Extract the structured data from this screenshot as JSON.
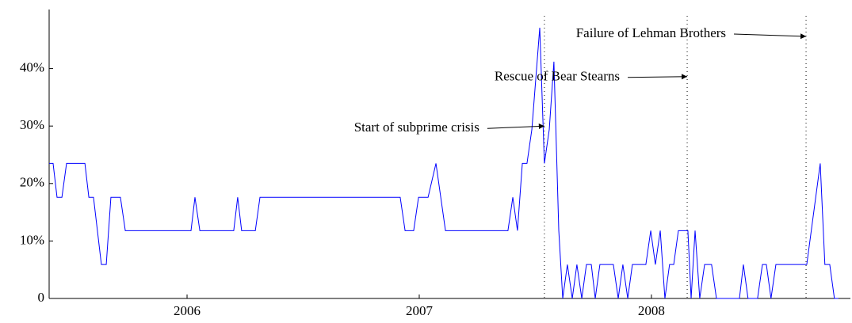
{
  "chart_data": {
    "type": "line",
    "x": [
      2005.406,
      2005.423,
      2005.44,
      2005.461,
      2005.481,
      2005.56,
      2005.577,
      2005.597,
      2005.631,
      2005.652,
      2005.672,
      2005.713,
      2005.734,
      2006.017,
      2006.034,
      2006.055,
      2006.201,
      2006.218,
      2006.235,
      2006.294,
      2006.314,
      2006.918,
      2006.939,
      2006.976,
      2006.997,
      2007.038,
      2007.072,
      2007.113,
      2007.382,
      2007.403,
      2007.423,
      2007.444,
      2007.464,
      2007.485,
      2007.519,
      2007.539,
      2007.56,
      2007.58,
      2007.601,
      2007.618,
      2007.638,
      2007.659,
      2007.679,
      2007.7,
      2007.72,
      2007.741,
      2007.758,
      2007.778,
      2007.836,
      2007.857,
      2007.877,
      2007.898,
      2007.918,
      2007.976,
      2007.997,
      2008.017,
      2008.038,
      2008.058,
      2008.078,
      2008.096,
      2008.116,
      2008.157,
      2008.171,
      2008.188,
      2008.208,
      2008.229,
      2008.259,
      2008.28,
      2008.379,
      2008.396,
      2008.416,
      2008.457,
      2008.478,
      2008.495,
      2008.515,
      2008.536,
      2008.669,
      2008.727,
      2008.747,
      2008.768,
      2008.788,
      2008.805
    ],
    "values": [
      23.5,
      23.5,
      17.6,
      17.6,
      23.5,
      23.5,
      17.6,
      17.6,
      5.9,
      5.9,
      17.6,
      17.6,
      11.8,
      11.8,
      17.6,
      11.8,
      11.8,
      17.6,
      11.8,
      11.8,
      17.6,
      17.6,
      11.8,
      11.8,
      17.6,
      17.6,
      23.5,
      11.8,
      11.8,
      17.6,
      11.8,
      23.5,
      23.5,
      29.4,
      47.1,
      23.5,
      29.4,
      41.2,
      11.8,
      0,
      5.9,
      0,
      5.9,
      0,
      5.9,
      5.9,
      0,
      5.9,
      5.9,
      0,
      5.9,
      0,
      5.9,
      5.9,
      11.8,
      5.9,
      11.8,
      0,
      5.9,
      5.9,
      11.8,
      11.8,
      0,
      11.8,
      0,
      5.9,
      5.9,
      0,
      0,
      5.9,
      0,
      0,
      5.9,
      5.9,
      0,
      5.9,
      5.9,
      23.5,
      5.9,
      5.9,
      0,
      0
    ],
    "color": "#0000ff",
    "xlim": [
      2005.406,
      2008.857
    ],
    "xticks": [
      2006,
      2007,
      2008
    ],
    "ylim": [
      0,
      50
    ],
    "yticks": [
      0,
      {
        "value": 10,
        "label": "10%"
      },
      {
        "value": 20,
        "label": "20%"
      },
      {
        "value": 30,
        "label": "30%"
      },
      {
        "value": 40,
        "label": "40%"
      }
    ],
    "vlines": [
      2007.539,
      2008.154,
      2008.666
    ],
    "annotations": [
      {
        "text": "Start of subprime crisis",
        "x": 2007.539,
        "y": 30
      },
      {
        "text": "Rescue of Bear Stearns",
        "x": 2008.154,
        "y": 38.6
      },
      {
        "text": "Failure of Lehman Brothers",
        "x": 2008.666,
        "y": 45.6
      }
    ]
  }
}
